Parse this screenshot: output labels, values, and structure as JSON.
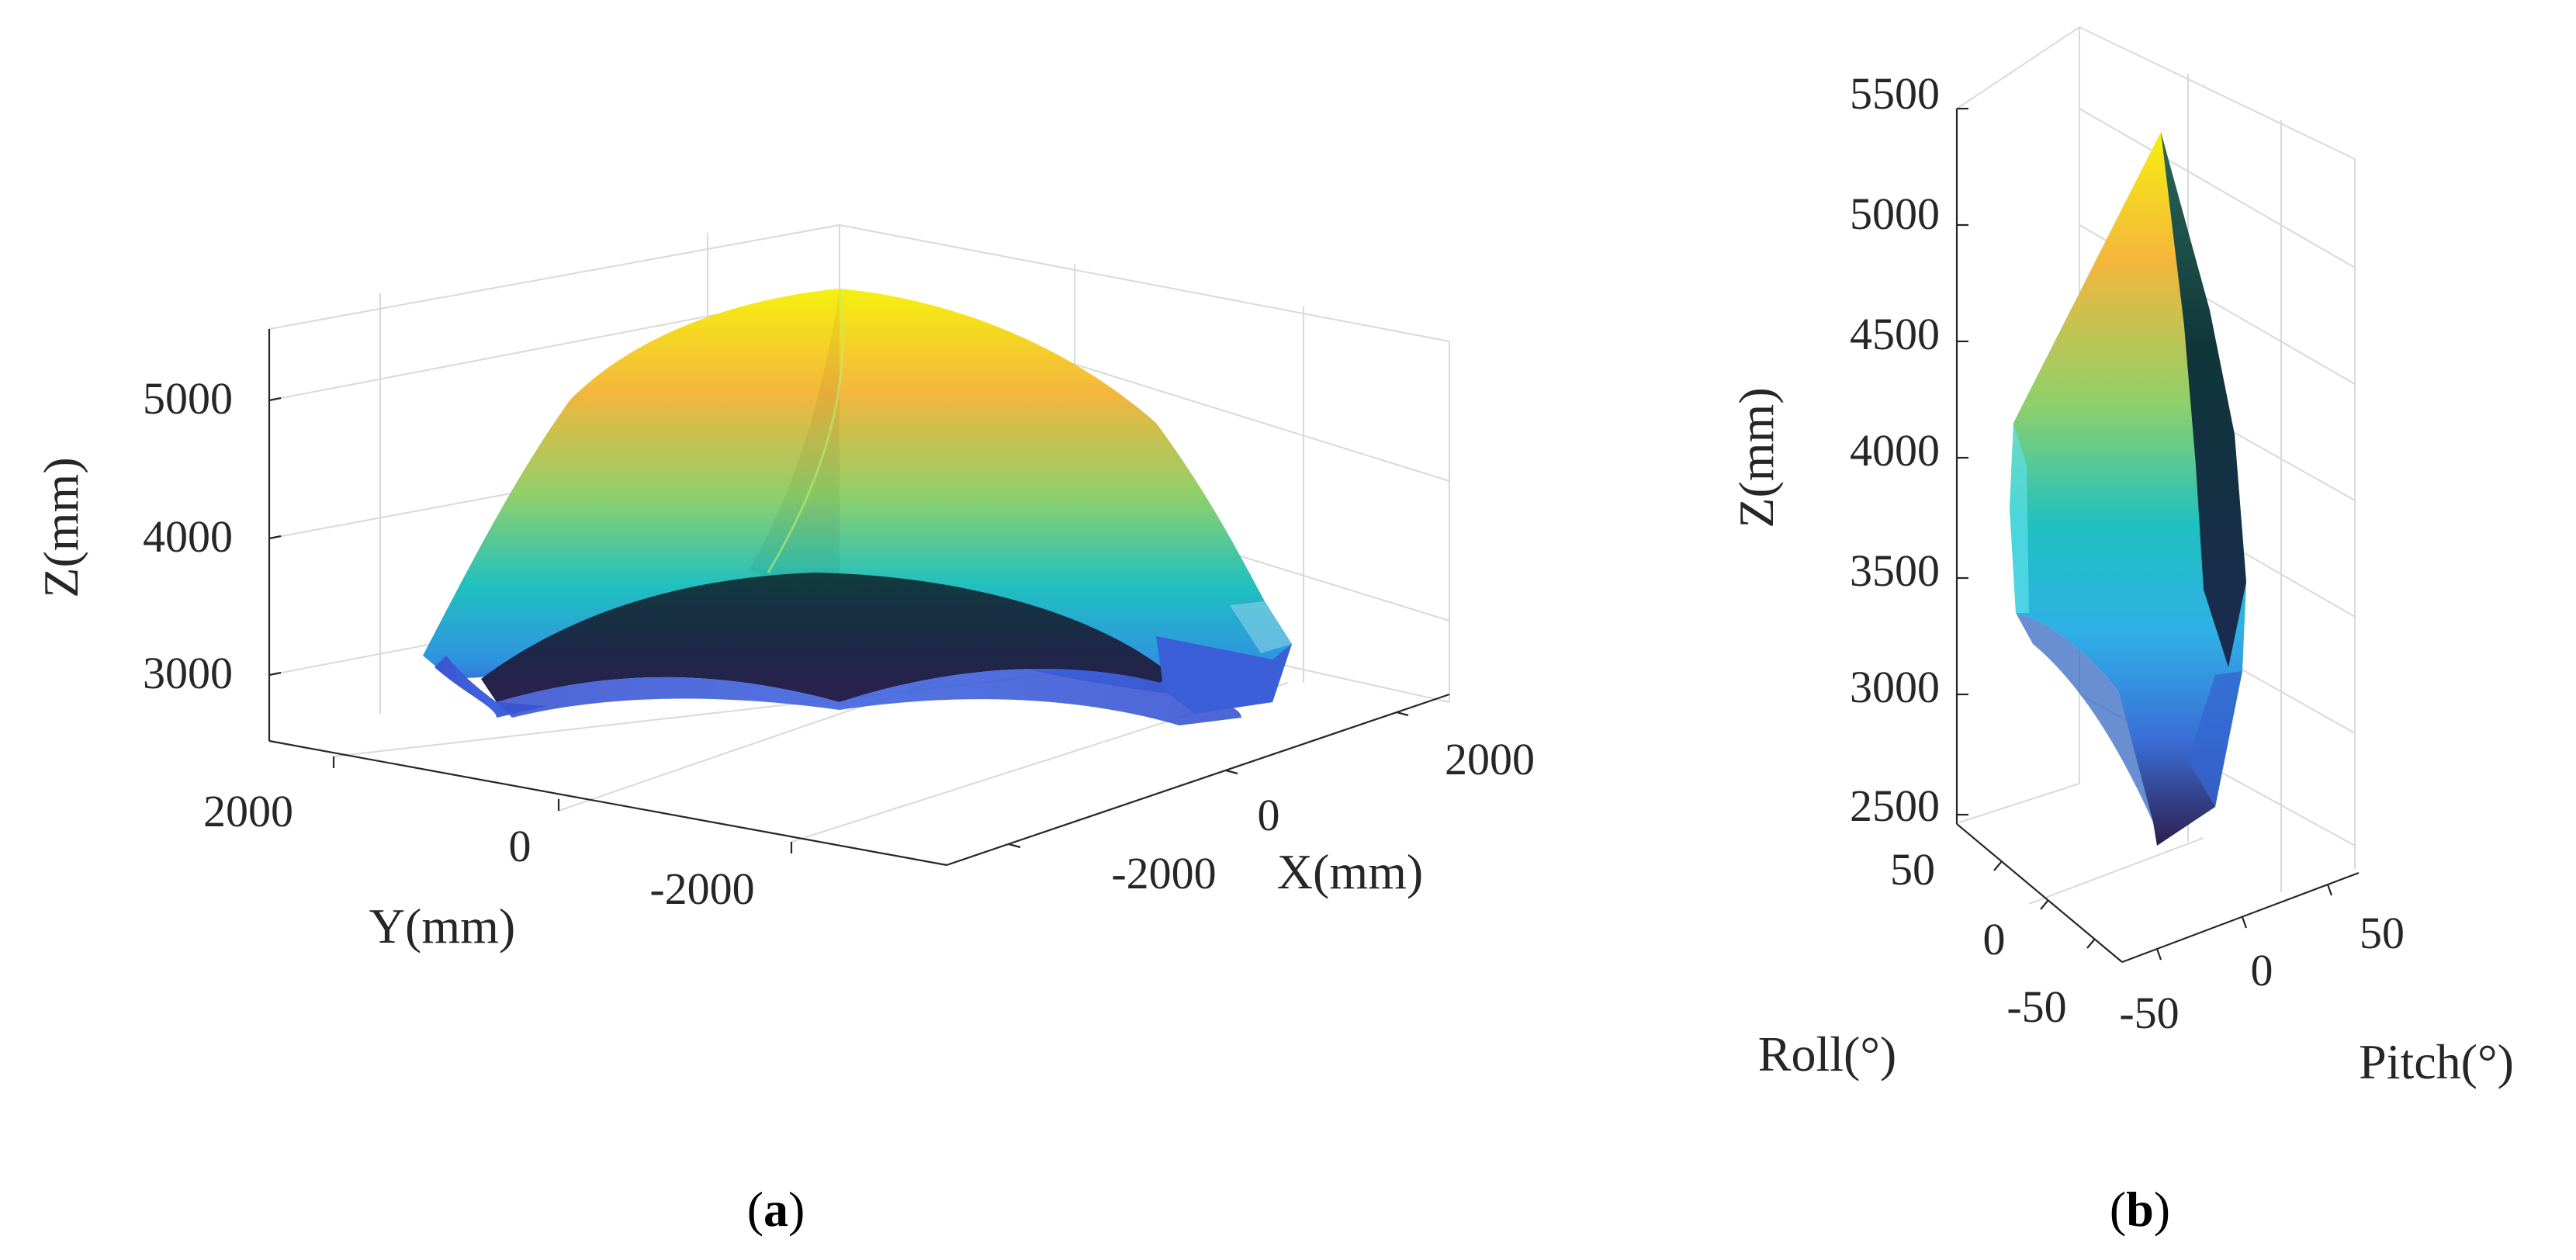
{
  "colors": {
    "colormap": [
      "#2d1e4d",
      "#3b4fc9",
      "#2f93e0",
      "#1fc0c0",
      "#6ed07a",
      "#f4b63c",
      "#f6f00f"
    ],
    "axis": "#262626",
    "grid": "#d9d9d9"
  },
  "chart_data": [
    {
      "type": "surface3d",
      "caption": {
        "open": "(",
        "letter": "a",
        "close": ")"
      },
      "xlabel": "X(mm)",
      "ylabel": "Y(mm)",
      "zlabel": "Z(mm)",
      "xticks": [
        "-2000",
        "0",
        "2000"
      ],
      "yticks": [
        "2000",
        "0",
        "-2000"
      ],
      "zticks": [
        "5000",
        "4000",
        "3000"
      ],
      "zlim": [
        2600,
        5500
      ],
      "surface_peak_z": 5400,
      "surface_rim_z": 3000,
      "grid": true
    },
    {
      "type": "surface3d",
      "caption": {
        "open": "(",
        "letter": "b",
        "close": ")"
      },
      "xlabel": "Pitch(°)",
      "ylabel": "Roll(°)",
      "zlabel": "Z(mm)",
      "xticks": [
        "50",
        "0",
        "-50"
      ],
      "yticks": [
        "50",
        "0",
        "-50"
      ],
      "zticks": [
        "5500",
        "5000",
        "4500",
        "4000",
        "3500",
        "3000",
        "2500"
      ],
      "zlim": [
        2500,
        5500
      ],
      "surface_peak_z": 5400,
      "surface_min_z": 2800,
      "grid": true
    }
  ]
}
